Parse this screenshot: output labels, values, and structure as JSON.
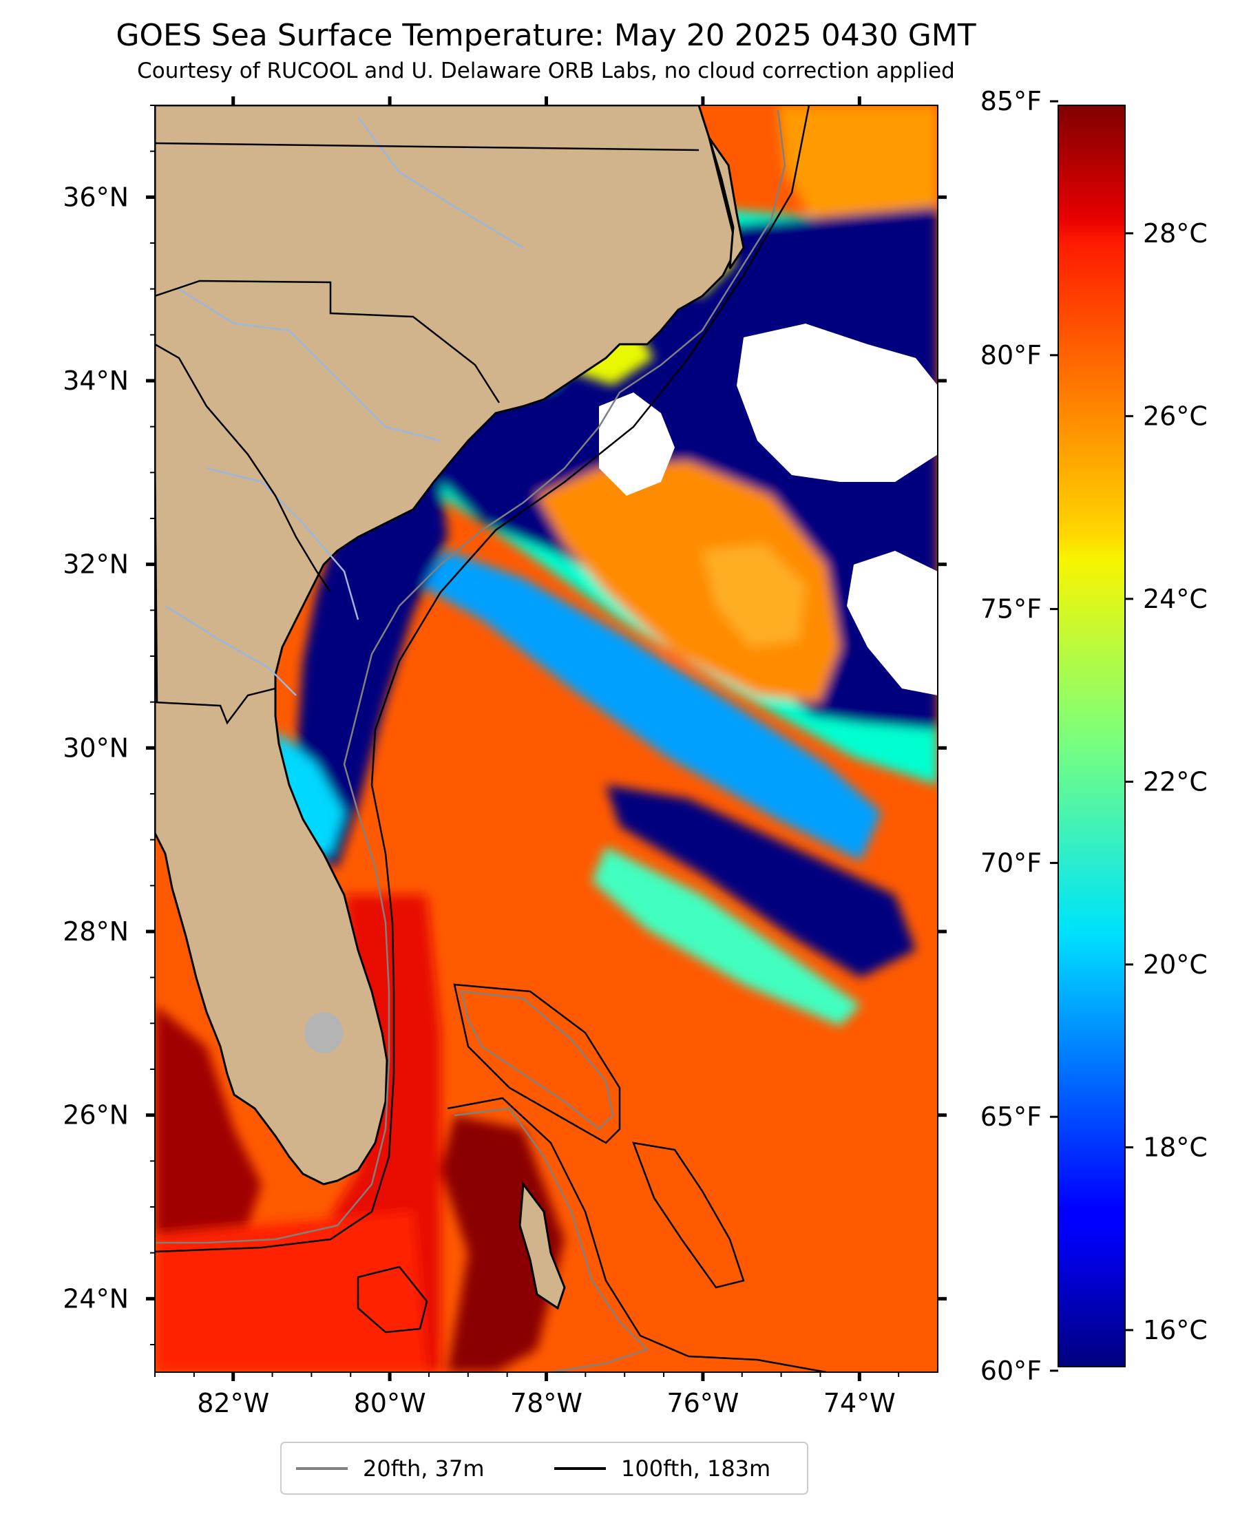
{
  "title": "GOES Sea Surface Temperature: May 20 2025 0430 GMT",
  "subtitle": "Courtesy of RUCOOL and U. Delaware ORB Labs, no cloud correction applied",
  "map": {
    "lon_range": [
      -83,
      -73
    ],
    "lat_range": [
      23.2,
      37.0
    ],
    "x_ticks": [
      "82°W",
      "80°W",
      "78°W",
      "76°W",
      "74°W"
    ],
    "y_ticks": [
      "36°N",
      "34°N",
      "32°N",
      "30°N",
      "28°N",
      "26°N",
      "24°N"
    ],
    "colors": {
      "land": "#d1b48c",
      "cloud": "#ffffff",
      "lake": "#b4b4b4",
      "river": "#9cb6dc"
    }
  },
  "colorbar": {
    "colormap": "jet",
    "celsius_range": [
      15.6,
      29.4
    ],
    "fahrenheit_labels": [
      "85°F",
      "80°F",
      "75°F",
      "70°F",
      "65°F",
      "60°F"
    ],
    "celsius_labels": [
      "28°C",
      "26°C",
      "24°C",
      "22°C",
      "20°C",
      "18°C",
      "16°C"
    ]
  },
  "legend": {
    "items": [
      {
        "label": "20fth, 37m",
        "color": "#808080"
      },
      {
        "label": "100fth, 183m",
        "color": "#000000"
      }
    ]
  }
}
